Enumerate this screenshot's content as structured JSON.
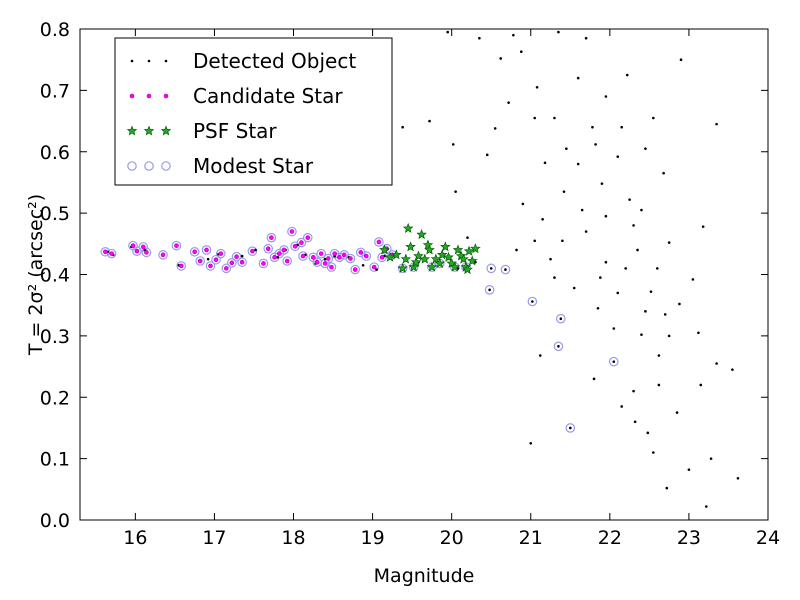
{
  "chart_data": {
    "type": "scatter",
    "xlabel": "Magnitude",
    "ylabel": "T = 2σ² (arcsec²)",
    "xlim": [
      15.3,
      24
    ],
    "ylim": [
      0,
      0.8
    ],
    "xticks": [
      "16",
      "17",
      "18",
      "19",
      "20",
      "21",
      "22",
      "23",
      "24"
    ],
    "yticks": [
      "0.0",
      "0.1",
      "0.2",
      "0.3",
      "0.4",
      "0.5",
      "0.6",
      "0.7",
      "0.8"
    ],
    "grid": false,
    "legend_position": "top-left",
    "legend": [
      {
        "label": "Detected Object",
        "marker": "dot",
        "color": "#000000"
      },
      {
        "label": "Candidate Star",
        "marker": "small-circle",
        "color": "#ff00ff"
      },
      {
        "label": "PSF Star",
        "marker": "star",
        "color": "#22aa22"
      },
      {
        "label": "Modest Star",
        "marker": "open-circle",
        "color": "#9999ee"
      }
    ],
    "series": [
      {
        "name": "Detected Object",
        "color": "#000000",
        "points": [
          [
            15.65,
            0.437
          ],
          [
            15.72,
            0.432
          ],
          [
            15.95,
            0.445
          ],
          [
            16.12,
            0.44
          ],
          [
            16.35,
            0.432
          ],
          [
            16.55,
            0.415
          ],
          [
            16.75,
            0.436
          ],
          [
            16.92,
            0.425
          ],
          [
            17.05,
            0.433
          ],
          [
            17.22,
            0.418
          ],
          [
            17.35,
            0.43
          ],
          [
            17.52,
            0.44
          ],
          [
            17.68,
            0.442
          ],
          [
            17.72,
            0.46
          ],
          [
            17.8,
            0.428
          ],
          [
            17.9,
            0.44
          ],
          [
            18.05,
            0.448
          ],
          [
            18.15,
            0.432
          ],
          [
            18.28,
            0.418
          ],
          [
            18.4,
            0.425
          ],
          [
            18.52,
            0.43
          ],
          [
            18.7,
            0.428
          ],
          [
            18.88,
            0.415
          ],
          [
            19.05,
            0.408
          ],
          [
            19.15,
            0.43
          ],
          [
            20.08,
            0.41
          ],
          [
            20.3,
            0.42
          ],
          [
            20.5,
            0.41
          ],
          [
            20.68,
            0.408
          ],
          [
            20.48,
            0.375
          ],
          [
            21.02,
            0.356
          ],
          [
            21.38,
            0.328
          ],
          [
            21.35,
            0.283
          ],
          [
            21.5,
            0.15
          ],
          [
            22.05,
            0.258
          ],
          [
            19.38,
            0.64
          ],
          [
            19.72,
            0.65
          ],
          [
            20.02,
            0.612
          ],
          [
            20.45,
            0.595
          ],
          [
            20.05,
            0.535
          ],
          [
            19.58,
            0.42
          ],
          [
            20.2,
            0.46
          ],
          [
            20.62,
            0.752
          ],
          [
            20.88,
            0.763
          ],
          [
            21.08,
            0.705
          ],
          [
            21.3,
            0.655
          ],
          [
            21.6,
            0.72
          ],
          [
            21.82,
            0.612
          ],
          [
            22.22,
            0.725
          ],
          [
            22.55,
            0.655
          ],
          [
            22.9,
            0.75
          ],
          [
            23.35,
            0.645
          ],
          [
            22.68,
            0.565
          ],
          [
            23.18,
            0.478
          ],
          [
            21.42,
            0.535
          ],
          [
            21.7,
            0.47
          ],
          [
            21.95,
            0.42
          ],
          [
            22.25,
            0.522
          ],
          [
            22.6,
            0.41
          ],
          [
            22.88,
            0.352
          ],
          [
            23.12,
            0.305
          ],
          [
            23.35,
            0.255
          ],
          [
            23.55,
            0.245
          ],
          [
            22.62,
            0.268
          ],
          [
            22.3,
            0.21
          ],
          [
            22.15,
            0.185
          ],
          [
            21.12,
            0.268
          ],
          [
            21.0,
            0.125
          ],
          [
            22.48,
            0.142
          ],
          [
            22.72,
            0.052
          ],
          [
            23.0,
            0.082
          ],
          [
            23.22,
            0.022
          ],
          [
            23.62,
            0.068
          ],
          [
            23.28,
            0.1
          ],
          [
            22.85,
            0.175
          ],
          [
            21.8,
            0.23
          ],
          [
            21.3,
            0.395
          ],
          [
            21.55,
            0.378
          ],
          [
            21.85,
            0.345
          ],
          [
            22.05,
            0.312
          ],
          [
            22.4,
            0.302
          ],
          [
            22.7,
            0.335
          ],
          [
            21.18,
            0.582
          ],
          [
            21.45,
            0.605
          ],
          [
            21.6,
            0.58
          ],
          [
            21.9,
            0.548
          ],
          [
            22.1,
            0.592
          ],
          [
            22.35,
            0.44
          ],
          [
            22.52,
            0.372
          ],
          [
            23.05,
            0.392
          ],
          [
            20.82,
            0.44
          ],
          [
            20.78,
            0.79
          ],
          [
            21.35,
            0.795
          ],
          [
            21.7,
            0.785
          ],
          [
            20.35,
            0.785
          ],
          [
            19.95,
            0.795
          ],
          [
            21.15,
            0.49
          ],
          [
            21.05,
            0.455
          ],
          [
            20.9,
            0.515
          ],
          [
            21.25,
            0.425
          ],
          [
            21.65,
            0.505
          ],
          [
            21.78,
            0.64
          ],
          [
            21.95,
            0.69
          ],
          [
            22.15,
            0.64
          ],
          [
            22.45,
            0.605
          ],
          [
            22.4,
            0.505
          ],
          [
            22.3,
            0.48
          ],
          [
            22.75,
            0.452
          ],
          [
            21.4,
            0.455
          ],
          [
            21.95,
            0.495
          ],
          [
            21.88,
            0.395
          ],
          [
            22.1,
            0.37
          ],
          [
            22.45,
            0.34
          ],
          [
            22.75,
            0.3
          ],
          [
            21.05,
            0.655
          ],
          [
            20.55,
            0.638
          ],
          [
            20.72,
            0.68
          ],
          [
            22.2,
            0.41
          ],
          [
            22.62,
            0.22
          ],
          [
            23.15,
            0.22
          ],
          [
            22.32,
            0.16
          ],
          [
            22.55,
            0.11
          ]
        ]
      },
      {
        "name": "Candidate Star",
        "color": "#ff00ff",
        "points": [
          [
            15.62,
            0.437
          ],
          [
            15.7,
            0.434
          ],
          [
            15.97,
            0.447
          ],
          [
            16.02,
            0.438
          ],
          [
            16.1,
            0.445
          ],
          [
            16.14,
            0.436
          ],
          [
            16.35,
            0.432
          ],
          [
            16.52,
            0.447
          ],
          [
            16.58,
            0.414
          ],
          [
            16.75,
            0.437
          ],
          [
            16.82,
            0.422
          ],
          [
            16.9,
            0.44
          ],
          [
            16.95,
            0.414
          ],
          [
            17.02,
            0.424
          ],
          [
            17.08,
            0.434
          ],
          [
            17.15,
            0.41
          ],
          [
            17.22,
            0.419
          ],
          [
            17.28,
            0.429
          ],
          [
            17.35,
            0.42
          ],
          [
            17.48,
            0.438
          ],
          [
            17.62,
            0.418
          ],
          [
            17.68,
            0.442
          ],
          [
            17.72,
            0.46
          ],
          [
            17.76,
            0.428
          ],
          [
            17.82,
            0.434
          ],
          [
            17.88,
            0.44
          ],
          [
            17.92,
            0.422
          ],
          [
            17.98,
            0.47
          ],
          [
            18.02,
            0.446
          ],
          [
            18.1,
            0.452
          ],
          [
            18.12,
            0.43
          ],
          [
            18.18,
            0.46
          ],
          [
            18.25,
            0.428
          ],
          [
            18.3,
            0.42
          ],
          [
            18.35,
            0.434
          ],
          [
            18.4,
            0.418
          ],
          [
            18.44,
            0.426
          ],
          [
            18.48,
            0.412
          ],
          [
            18.52,
            0.434
          ],
          [
            18.58,
            0.428
          ],
          [
            18.64,
            0.432
          ],
          [
            18.72,
            0.426
          ],
          [
            18.78,
            0.408
          ],
          [
            18.85,
            0.436
          ],
          [
            18.92,
            0.43
          ],
          [
            19.02,
            0.412
          ],
          [
            19.08,
            0.453
          ],
          [
            19.12,
            0.428
          ],
          [
            19.18,
            0.442
          ],
          [
            19.25,
            0.432
          ]
        ]
      },
      {
        "name": "PSF Star",
        "color": "#22aa22",
        "points": [
          [
            19.15,
            0.44
          ],
          [
            19.22,
            0.428
          ],
          [
            19.3,
            0.432
          ],
          [
            19.38,
            0.41
          ],
          [
            19.45,
            0.475
          ],
          [
            19.48,
            0.445
          ],
          [
            19.52,
            0.412
          ],
          [
            19.58,
            0.43
          ],
          [
            19.62,
            0.465
          ],
          [
            19.66,
            0.425
          ],
          [
            19.7,
            0.448
          ],
          [
            19.72,
            0.44
          ],
          [
            19.75,
            0.412
          ],
          [
            19.8,
            0.425
          ],
          [
            19.85,
            0.418
          ],
          [
            19.88,
            0.432
          ],
          [
            19.92,
            0.445
          ],
          [
            19.96,
            0.428
          ],
          [
            20.0,
            0.418
          ],
          [
            20.04,
            0.412
          ],
          [
            20.08,
            0.44
          ],
          [
            20.12,
            0.43
          ],
          [
            20.15,
            0.425
          ],
          [
            20.18,
            0.412
          ],
          [
            20.22,
            0.438
          ],
          [
            20.26,
            0.422
          ],
          [
            20.3,
            0.442
          ],
          [
            19.42,
            0.425
          ],
          [
            19.55,
            0.42
          ],
          [
            20.2,
            0.408
          ]
        ]
      },
      {
        "name": "Modest Star",
        "color": "#9999ee",
        "points": [
          [
            15.62,
            0.437
          ],
          [
            15.7,
            0.434
          ],
          [
            15.97,
            0.447
          ],
          [
            16.02,
            0.438
          ],
          [
            16.1,
            0.445
          ],
          [
            16.14,
            0.436
          ],
          [
            16.35,
            0.432
          ],
          [
            16.52,
            0.447
          ],
          [
            16.58,
            0.414
          ],
          [
            16.75,
            0.437
          ],
          [
            16.82,
            0.422
          ],
          [
            16.9,
            0.44
          ],
          [
            16.95,
            0.414
          ],
          [
            17.02,
            0.424
          ],
          [
            17.08,
            0.434
          ],
          [
            17.15,
            0.41
          ],
          [
            17.22,
            0.419
          ],
          [
            17.28,
            0.429
          ],
          [
            17.35,
            0.42
          ],
          [
            17.48,
            0.438
          ],
          [
            17.62,
            0.418
          ],
          [
            17.68,
            0.442
          ],
          [
            17.72,
            0.46
          ],
          [
            17.76,
            0.428
          ],
          [
            17.82,
            0.434
          ],
          [
            17.88,
            0.44
          ],
          [
            17.92,
            0.422
          ],
          [
            17.98,
            0.47
          ],
          [
            18.02,
            0.446
          ],
          [
            18.1,
            0.452
          ],
          [
            18.12,
            0.43
          ],
          [
            18.18,
            0.46
          ],
          [
            18.25,
            0.428
          ],
          [
            18.3,
            0.42
          ],
          [
            18.35,
            0.434
          ],
          [
            18.4,
            0.418
          ],
          [
            18.44,
            0.426
          ],
          [
            18.48,
            0.412
          ],
          [
            18.52,
            0.434
          ],
          [
            18.58,
            0.428
          ],
          [
            18.64,
            0.432
          ],
          [
            18.72,
            0.426
          ],
          [
            18.78,
            0.408
          ],
          [
            18.85,
            0.436
          ],
          [
            18.92,
            0.43
          ],
          [
            19.02,
            0.412
          ],
          [
            19.08,
            0.453
          ],
          [
            19.12,
            0.428
          ],
          [
            19.18,
            0.442
          ],
          [
            19.25,
            0.432
          ],
          [
            19.38,
            0.41
          ],
          [
            19.52,
            0.412
          ],
          [
            19.75,
            0.412
          ],
          [
            19.85,
            0.418
          ],
          [
            20.04,
            0.412
          ],
          [
            20.18,
            0.412
          ],
          [
            20.5,
            0.41
          ],
          [
            20.68,
            0.408
          ],
          [
            20.48,
            0.375
          ],
          [
            21.02,
            0.356
          ],
          [
            21.38,
            0.328
          ],
          [
            21.35,
            0.283
          ],
          [
            21.5,
            0.15
          ],
          [
            22.05,
            0.258
          ]
        ]
      }
    ]
  }
}
